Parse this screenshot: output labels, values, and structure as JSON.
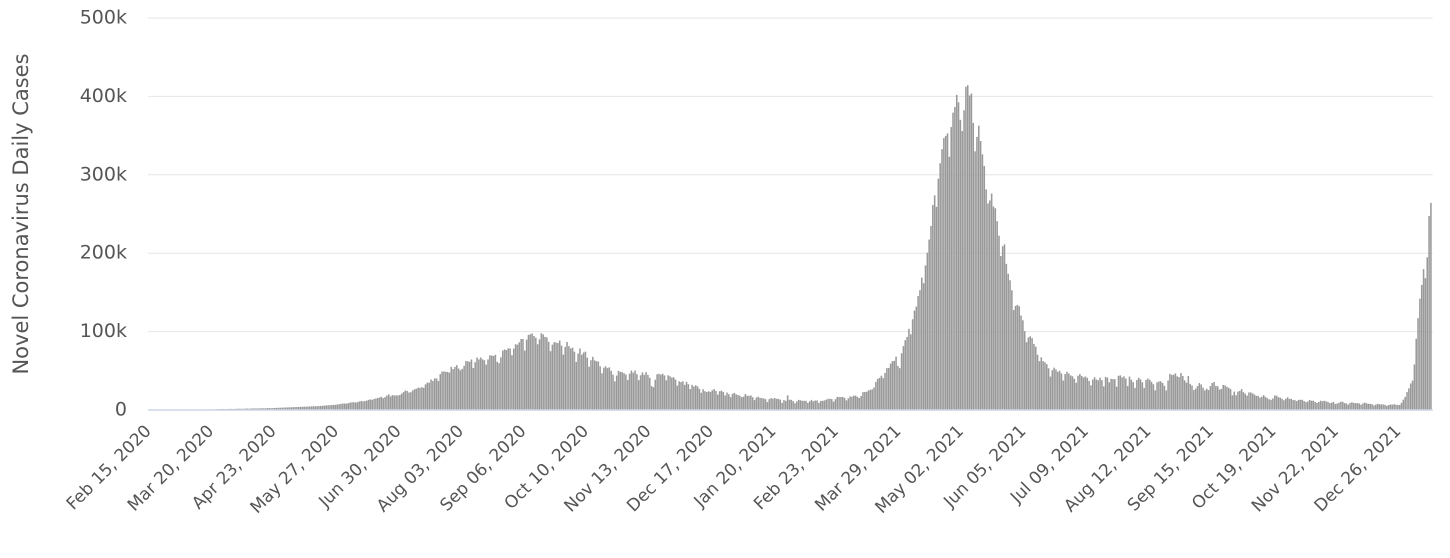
{
  "chart_data": {
    "type": "bar",
    "y_label": "Novel Coronavirus Daily Cases",
    "color": "#999999",
    "grid": true,
    "ylim": [
      0,
      500000
    ],
    "yticks": [
      0,
      {
        "value": 100000,
        "label": "100k"
      },
      {
        "value": 200000,
        "label": "200k"
      },
      {
        "value": 300000,
        "label": "300k"
      },
      {
        "value": 400000,
        "label": "400k"
      },
      {
        "value": 500000,
        "label": "500k"
      }
    ],
    "categories": [
      "Feb 15, 2020",
      null,
      null,
      null,
      null,
      null,
      null,
      null,
      null,
      null,
      null,
      null,
      null,
      null,
      null,
      null,
      null,
      null,
      null,
      null,
      null,
      null,
      null,
      null,
      null,
      null,
      null,
      null,
      null,
      null,
      null,
      null,
      null,
      null,
      "Mar 20, 2020",
      null,
      null,
      null,
      null,
      null,
      null,
      null,
      null,
      null,
      null,
      null,
      null,
      null,
      null,
      null,
      null,
      null,
      null,
      null,
      null,
      null,
      null,
      null,
      null,
      null,
      null,
      null,
      null,
      null,
      null,
      null,
      null,
      null,
      "Apr 23, 2020",
      null,
      null,
      null,
      null,
      null,
      null,
      null,
      null,
      null,
      null,
      null,
      null,
      null,
      null,
      null,
      null,
      null,
      null,
      null,
      null,
      null,
      null,
      null,
      null,
      null,
      null,
      null,
      null,
      null,
      null,
      null,
      null,
      null,
      "May 27, 2020",
      null,
      null,
      null,
      null,
      null,
      null,
      null,
      null,
      null,
      null,
      null,
      null,
      null,
      null,
      null,
      null,
      null,
      null,
      null,
      null,
      null,
      null,
      null,
      null,
      null,
      null,
      null,
      null,
      null,
      null,
      null,
      null,
      null,
      "Jun 30, 2020",
      null,
      null,
      null,
      null,
      null,
      null,
      null,
      null,
      null,
      null,
      null,
      null,
      null,
      null,
      null,
      null,
      null,
      null,
      null,
      null,
      null,
      null,
      null,
      null,
      null,
      null,
      null,
      null,
      null,
      null,
      null,
      null,
      null,
      "Aug 03, 2020",
      null,
      null,
      null,
      null,
      null,
      null,
      null,
      null,
      null,
      null,
      null,
      null,
      null,
      null,
      null,
      null,
      null,
      null,
      null,
      null,
      null,
      null,
      null,
      null,
      null,
      null,
      null,
      null,
      null,
      null,
      null,
      null,
      null,
      "Sep 06, 2020",
      null,
      null,
      null,
      null,
      null,
      null,
      null,
      null,
      null,
      null,
      null,
      null,
      null,
      null,
      null,
      null,
      null,
      null,
      null,
      null,
      null,
      null,
      null,
      null,
      null,
      null,
      null,
      null,
      null,
      null,
      null,
      null,
      null,
      "Oct 10, 2020",
      null,
      null,
      null,
      null,
      null,
      null,
      null,
      null,
      null,
      null,
      null,
      null,
      null,
      null,
      null,
      null,
      null,
      null,
      null,
      null,
      null,
      null,
      null,
      null,
      null,
      null,
      null,
      null,
      null,
      null,
      null,
      null,
      null,
      "Nov 13, 2020",
      null,
      null,
      null,
      null,
      null,
      null,
      null,
      null,
      null,
      null,
      null,
      null,
      null,
      null,
      null,
      null,
      null,
      null,
      null,
      null,
      null,
      null,
      null,
      null,
      null,
      null,
      null,
      null,
      null,
      null,
      null,
      null,
      null,
      "Dec 17, 2020",
      null,
      null,
      null,
      null,
      null,
      null,
      null,
      null,
      null,
      null,
      null,
      null,
      null,
      null,
      null,
      null,
      null,
      null,
      null,
      null,
      null,
      null,
      null,
      null,
      null,
      null,
      null,
      null,
      null,
      null,
      null,
      null,
      null,
      "Jan 20, 2021",
      null,
      null,
      null,
      null,
      null,
      null,
      null,
      null,
      null,
      null,
      null,
      null,
      null,
      null,
      null,
      null,
      null,
      null,
      null,
      null,
      null,
      null,
      null,
      null,
      null,
      null,
      null,
      null,
      null,
      null,
      null,
      null,
      null,
      "Feb 23, 2021",
      null,
      null,
      null,
      null,
      null,
      null,
      null,
      null,
      null,
      null,
      null,
      null,
      null,
      null,
      null,
      null,
      null,
      null,
      null,
      null,
      null,
      null,
      null,
      null,
      null,
      null,
      null,
      null,
      null,
      null,
      null,
      null,
      null,
      "Mar 29, 2021",
      null,
      null,
      null,
      null,
      null,
      null,
      null,
      null,
      null,
      null,
      null,
      null,
      null,
      null,
      null,
      null,
      null,
      null,
      null,
      null,
      null,
      null,
      null,
      null,
      null,
      null,
      null,
      null,
      null,
      null,
      null,
      null,
      null,
      "May 02, 2021",
      null,
      null,
      null,
      null,
      null,
      null,
      null,
      null,
      null,
      null,
      null,
      null,
      null,
      null,
      null,
      null,
      null,
      null,
      null,
      null,
      null,
      null,
      null,
      null,
      null,
      null,
      null,
      null,
      null,
      null,
      null,
      null,
      null,
      "Jun 05, 2021",
      null,
      null,
      null,
      null,
      null,
      null,
      null,
      null,
      null,
      null,
      null,
      null,
      null,
      null,
      null,
      null,
      null,
      null,
      null,
      null,
      null,
      null,
      null,
      null,
      null,
      null,
      null,
      null,
      null,
      null,
      null,
      null,
      null,
      "Jul 09, 2021",
      null,
      null,
      null,
      null,
      null,
      null,
      null,
      null,
      null,
      null,
      null,
      null,
      null,
      null,
      null,
      null,
      null,
      null,
      null,
      null,
      null,
      null,
      null,
      null,
      null,
      null,
      null,
      null,
      null,
      null,
      null,
      null,
      null,
      "Aug 12, 2021",
      null,
      null,
      null,
      null,
      null,
      null,
      null,
      null,
      null,
      null,
      null,
      null,
      null,
      null,
      null,
      null,
      null,
      null,
      null,
      null,
      null,
      null,
      null,
      null,
      null,
      null,
      null,
      null,
      null,
      null,
      null,
      null,
      null,
      "Sep 15, 2021",
      null,
      null,
      null,
      null,
      null,
      null,
      null,
      null,
      null,
      null,
      null,
      null,
      null,
      null,
      null,
      null,
      null,
      null,
      null,
      null,
      null,
      null,
      null,
      null,
      null,
      null,
      null,
      null,
      null,
      null,
      null,
      null,
      null,
      "Oct 19, 2021",
      null,
      null,
      null,
      null,
      null,
      null,
      null,
      null,
      null,
      null,
      null,
      null,
      null,
      null,
      null,
      null,
      null,
      null,
      null,
      null,
      null,
      null,
      null,
      null,
      null,
      null,
      null,
      null,
      null,
      null,
      null,
      null,
      null,
      "Nov 22, 2021",
      null,
      null,
      null,
      null,
      null,
      null,
      null,
      null,
      null,
      null,
      null,
      null,
      null,
      null,
      null,
      null,
      null,
      null,
      null,
      null,
      null,
      null,
      null,
      null,
      null,
      null,
      null,
      null,
      null,
      null,
      null,
      null,
      null,
      "Dec 26, 2021",
      null,
      null,
      null,
      null,
      null,
      null,
      null,
      null,
      null,
      null,
      null,
      null,
      null,
      null,
      null,
      null,
      null,
      null
    ],
    "values": [
      0,
      0,
      0,
      0,
      0,
      0,
      0,
      0,
      0,
      0,
      0,
      0,
      0,
      0,
      0,
      0,
      0,
      0,
      0,
      0,
      100,
      100,
      100,
      200,
      100,
      200,
      300,
      200,
      300,
      400,
      500,
      500,
      600,
      700,
      600,
      700,
      800,
      900,
      1000,
      1100,
      1200,
      1300,
      1100,
      1200,
      1400,
      1500,
      1300,
      1400,
      1500,
      1600,
      1700,
      1500,
      1600,
      1800,
      1900,
      1700,
      1800,
      2000,
      2100,
      1900,
      2000,
      2200,
      2300,
      2100,
      2200,
      2400,
      2500,
      2300,
      2500,
      2600,
      2700,
      2800,
      2900,
      3000,
      3100,
      3200,
      3300,
      3400,
      3500,
      3600,
      3700,
      3800,
      3900,
      4000,
      4100,
      4200,
      4300,
      4400,
      4500,
      4600,
      4700,
      4800,
      4900,
      5000,
      5200,
      5400,
      5600,
      5800,
      6000,
      6200,
      6400,
      6500,
      6600,
      7000,
      7400,
      7900,
      8200,
      8300,
      8100,
      8800,
      9500,
      9800,
      9900,
      9600,
      10000,
      10900,
      11400,
      11000,
      11500,
      12000,
      12900,
      13500,
      13100,
      14000,
      14800,
      15400,
      15900,
      16900,
      15000,
      16500,
      18500,
      19900,
      17300,
      19000,
      18500,
      18700,
      18600,
      19100,
      20900,
      22800,
      24800,
      24300,
      22300,
      22700,
      24900,
      26500,
      27100,
      28600,
      28200,
      29000,
      28400,
      32700,
      35000,
      34800,
      38900,
      37100,
      40400,
      40200,
      37100,
      45700,
      48900,
      49300,
      48700,
      48500,
      47700,
      55100,
      52100,
      55000,
      57100,
      52900,
      50600,
      52500,
      56300,
      62500,
      62100,
      61500,
      64400,
      53600,
      60900,
      66900,
      64500,
      67000,
      64600,
      63500,
      57900,
      64500,
      69700,
      69600,
      68900,
      70400,
      61400,
      59700,
      67200,
      75700,
      77300,
      76500,
      78700,
      78500,
      69900,
      78300,
      83900,
      83300,
      86400,
      90600,
      90600,
      75800,
      89700,
      95700,
      96600,
      97600,
      94400,
      92100,
      83800,
      90100,
      97900,
      96400,
      93300,
      92600,
      86900,
      75000,
      83300,
      86500,
      86100,
      85400,
      88600,
      82200,
      70600,
      80500,
      86800,
      81500,
      78500,
      79500,
      74400,
      61300,
      72000,
      78500,
      70500,
      73300,
      74400,
      66700,
      55300,
      63500,
      67700,
      63300,
      62200,
      61900,
      55700,
      46800,
      54000,
      55800,
      53400,
      54400,
      50100,
      45100,
      36500,
      43900,
      49900,
      48600,
      48300,
      46900,
      45200,
      38300,
      46300,
      50200,
      47600,
      50400,
      45700,
      38100,
      44300,
      47900,
      44900,
      48300,
      44700,
      41100,
      30500,
      29100,
      38600,
      45600,
      46200,
      45200,
      46300,
      44100,
      37900,
      44300,
      43100,
      41300,
      41800,
      38800,
      31100,
      36600,
      35600,
      36600,
      32100,
      36000,
      32900,
      26600,
      32100,
      30000,
      31500,
      30200,
      27000,
      22000,
      26400,
      24000,
      22900,
      24000,
      22900,
      25200,
      26600,
      24300,
      19600,
      23900,
      24700,
      23100,
      18700,
      22300,
      20100,
      16400,
      20600,
      21800,
      20000,
      19100,
      18200,
      16400,
      17100,
      20300,
      18200,
      18100,
      18600,
      16300,
      12600,
      15900,
      16900,
      15600,
      15100,
      14800,
      13800,
      10100,
      13800,
      15200,
      14500,
      15200,
      14300,
      14200,
      13200,
      9100,
      12700,
      11700,
      18800,
      13100,
      13000,
      11400,
      8600,
      11000,
      12900,
      12400,
      11700,
      11700,
      11800,
      9100,
      11100,
      12900,
      11100,
      12100,
      12200,
      9100,
      11600,
      11600,
      12200,
      13200,
      14300,
      14300,
      13900,
      10600,
      13700,
      16700,
      16600,
      16500,
      16700,
      15500,
      12300,
      14900,
      17400,
      16800,
      18300,
      18300,
      16800,
      15300,
      17900,
      22800,
      22900,
      23300,
      24900,
      25800,
      26300,
      28800,
      35800,
      39700,
      40900,
      43800,
      40700,
      47300,
      53400,
      53500,
      59100,
      62300,
      62700,
      68000,
      56200,
      53400,
      72300,
      81500,
      89100,
      93200,
      103600,
      96600,
      115700,
      126800,
      131900,
      145400,
      152900,
      168900,
      161700,
      184400,
      200700,
      217400,
      234700,
      261500,
      273800,
      259200,
      295000,
      314800,
      332700,
      346800,
      349700,
      352900,
      323100,
      360900,
      379300,
      386500,
      401900,
      392500,
      370100,
      355800,
      382300,
      412300,
      414200,
      401200,
      403700,
      366200,
      329900,
      348400,
      362700,
      343100,
      326100,
      311200,
      281400,
      263500,
      267300,
      276100,
      259500,
      257300,
      240800,
      222300,
      196400,
      208900,
      211300,
      186400,
      173800,
      165500,
      152700,
      127500,
      132800,
      134100,
      132400,
      120500,
      114400,
      100600,
      86500,
      92600,
      94100,
      91700,
      84300,
      80800,
      70400,
      62200,
      67200,
      62500,
      60800,
      58400,
      53200,
      42600,
      50800,
      54000,
      51700,
      48700,
      50000,
      46600,
      37600,
      45900,
      48800,
      46600,
      44100,
      43000,
      39800,
      34700,
      43700,
      45900,
      43400,
      41500,
      42800,
      41100,
      37200,
      31400,
      38800,
      41800,
      38900,
      38000,
      41200,
      38100,
      30100,
      42000,
      41400,
      35300,
      39700,
      39400,
      39400,
      29700,
      43600,
      44200,
      41600,
      42900,
      40100,
      30500,
      42600,
      38600,
      35500,
      28200,
      38300,
      41200,
      39100,
      35400,
      28200,
      38400,
      40100,
      38700,
      36000,
      32900,
      25100,
      35200,
      36400,
      36600,
      34500,
      30900,
      25000,
      37600,
      46100,
      44700,
      45000,
      46700,
      42900,
      41900,
      47100,
      43300,
      37900,
      34900,
      43300,
      33400,
      31200,
      25400,
      27300,
      30500,
      34400,
      32600,
      28600,
      25100,
      27200,
      25400,
      30600,
      34400,
      35700,
      30800,
      30300,
      26100,
      26900,
      31900,
      31400,
      29600,
      28300,
      26700,
      18800,
      23500,
      18900,
      23500,
      24300,
      26700,
      22800,
      20800,
      18300,
      22400,
      22400,
      21200,
      19700,
      18100,
      18100,
      15800,
      16900,
      18900,
      16800,
      15000,
      13600,
      13000,
      14600,
      18500,
      18400,
      16300,
      15900,
      14300,
      12400,
      14300,
      16200,
      14300,
      14300,
      12800,
      12500,
      11300,
      12900,
      13000,
      13100,
      11300,
      10100,
      10800,
      12700,
      11900,
      11800,
      10200,
      8900,
      10200,
      11900,
      11100,
      11800,
      11100,
      10300,
      8800,
      9300,
      10300,
      7600,
      8300,
      9300,
      10500,
      10500,
      8800,
      8300,
      6900,
      8900,
      9800,
      9200,
      8600,
      8900,
      8300,
      6800,
      8400,
      9400,
      8500,
      7900,
      7800,
      7400,
      5800,
      6900,
      7900,
      7400,
      7100,
      7100,
      6600,
      5300,
      6300,
      7000,
      6700,
      7500,
      6700,
      6500,
      6400,
      9200,
      13200,
      16800,
      22800,
      27600,
      33800,
      37400,
      58100,
      90900,
      117100,
      141900,
      159600,
      179700,
      168100,
      194700,
      247400,
      264200
    ]
  }
}
